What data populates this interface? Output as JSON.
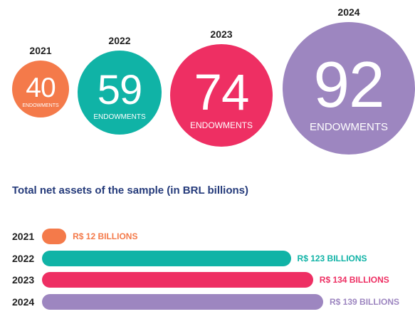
{
  "colors": {
    "2021": "#f47a4a",
    "2022": "#10b3a6",
    "2023": "#ee2f63",
    "2024": "#9d86c0",
    "title": "#243a7a"
  },
  "chart_data": [
    {
      "type": "bubble",
      "categories": [
        "2021",
        "2022",
        "2023",
        "2024"
      ],
      "values": [
        40,
        59,
        74,
        92
      ],
      "value_caption": "ENDOWMENTS"
    },
    {
      "type": "bar",
      "orientation": "horizontal",
      "title": "Total net assets of the sample (in BRL billions)",
      "categories": [
        "2021",
        "2022",
        "2023",
        "2024"
      ],
      "values": [
        12,
        123,
        134,
        139
      ],
      "value_labels": [
        "R$ 12 BILLIONS",
        "R$ 123 BILLIONS",
        "R$ 134 BILLIONS",
        "R$ 139 BILLIONS"
      ],
      "xlim": [
        0,
        139
      ]
    }
  ]
}
